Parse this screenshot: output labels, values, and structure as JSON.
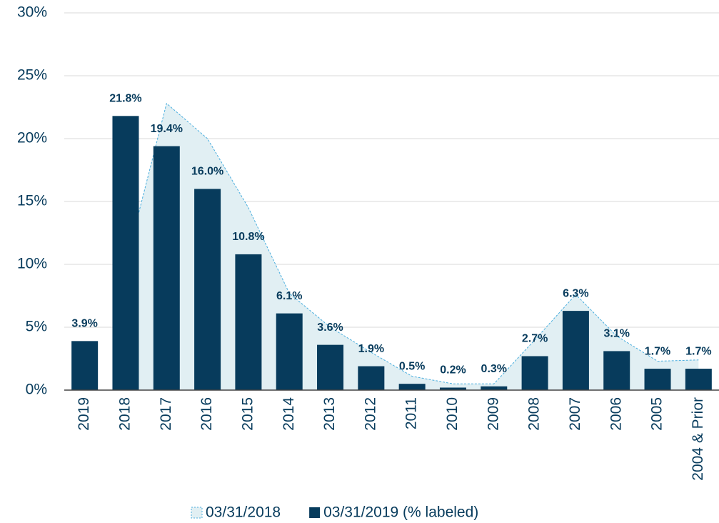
{
  "chart_data": {
    "type": "bar-area",
    "categories": [
      "2019",
      "2018",
      "2017",
      "2016",
      "2015",
      "2014",
      "2013",
      "2012",
      "2011",
      "2010",
      "2009",
      "2008",
      "2007",
      "2006",
      "2005",
      "2004 & Prior"
    ],
    "series": [
      {
        "name": "03/31/2018",
        "type": "area",
        "color": "#4aaede",
        "fill": "#e1eff3",
        "values": [
          null,
          10.0,
          22.8,
          20.0,
          14.5,
          7.7,
          5.0,
          3.0,
          1.1,
          0.5,
          0.5,
          4.0,
          7.6,
          4.3,
          2.3,
          2.4
        ]
      },
      {
        "name": "03/31/2019 (% labeled)",
        "type": "bar",
        "color": "#073b5c",
        "values": [
          3.9,
          21.8,
          19.4,
          16.0,
          10.8,
          6.1,
          3.6,
          1.9,
          0.5,
          0.2,
          0.3,
          2.7,
          6.3,
          3.1,
          1.7,
          1.7
        ],
        "value_labels": [
          "3.9%",
          "21.8%",
          "19.4%",
          "16.0%",
          "10.8%",
          "6.1%",
          "3.6%",
          "1.9%",
          "0.5%",
          "0.2%",
          "0.3%",
          "2.7%",
          "6.3%",
          "3.1%",
          "1.7%",
          "1.7%"
        ]
      }
    ],
    "ylim": [
      0,
      30
    ],
    "yticks": [
      {
        "value": 0,
        "label": "0%"
      },
      {
        "value": 5,
        "label": "5%"
      },
      {
        "value": 10,
        "label": "10%"
      },
      {
        "value": 15,
        "label": "15%"
      },
      {
        "value": 20,
        "label": "20%"
      },
      {
        "value": 25,
        "label": "25%"
      },
      {
        "value": 30,
        "label": "30%"
      }
    ],
    "grid": true,
    "legend": "bottom"
  }
}
